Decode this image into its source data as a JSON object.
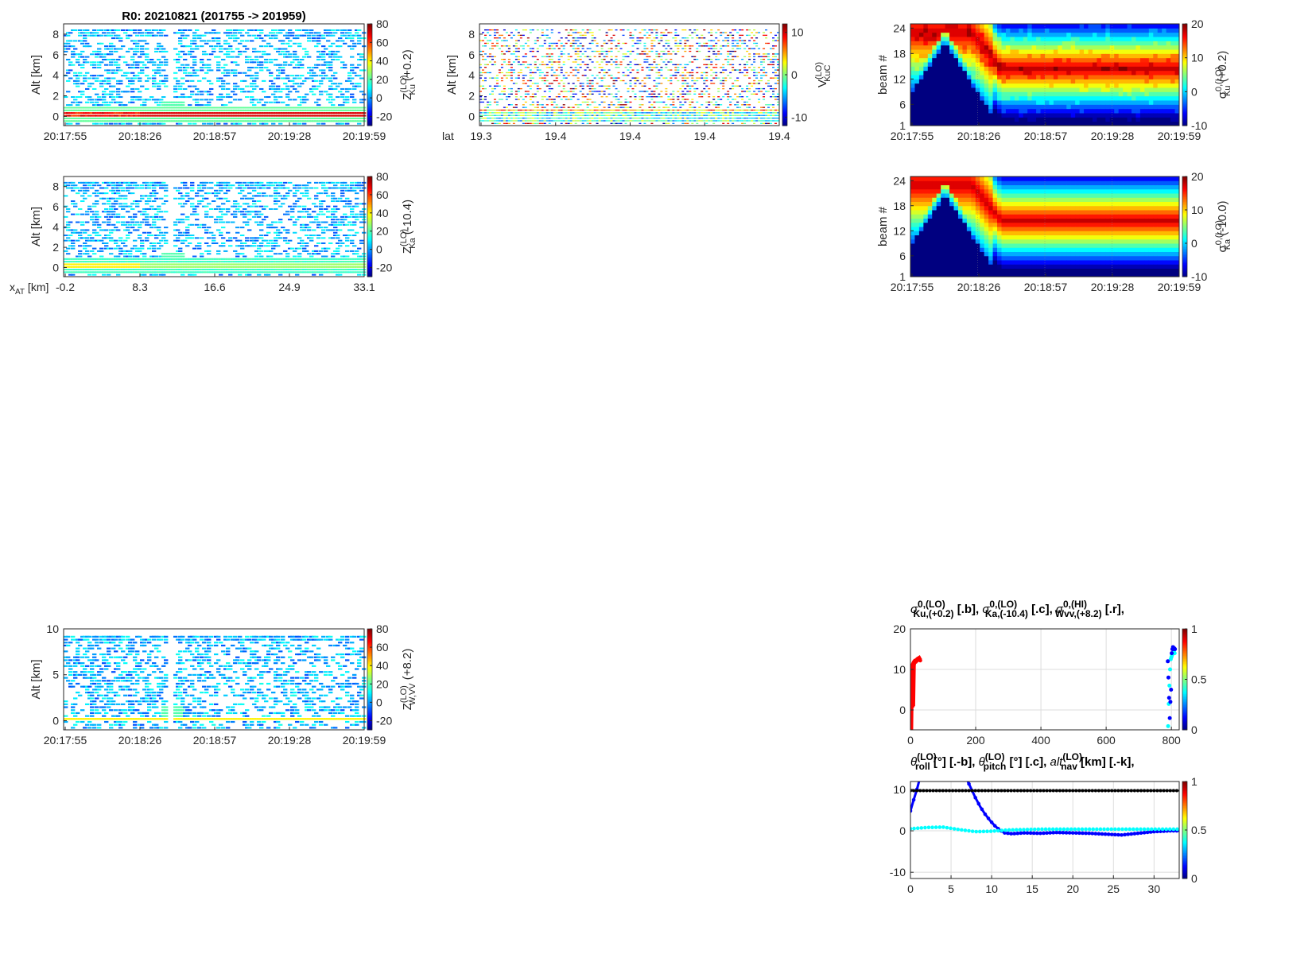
{
  "figure_title": "R0:  20210821 (201755 -> 201959)",
  "colors": {
    "ku": "#ff0000",
    "ka": "#00ffff",
    "w": "#0000ff",
    "alt": "#000000"
  },
  "chart_data": [
    {
      "id": "p1",
      "type": "heatmap",
      "ylabel": "Alt [km]",
      "ylim": [
        -0.9,
        9
      ],
      "yticks": [
        "0",
        "2",
        "4",
        "6",
        "8"
      ],
      "ytick_values": [
        0,
        2,
        4,
        6,
        8
      ],
      "xticks": [
        "20:17:55",
        "20:18:26",
        "20:18:57",
        "20:19:28",
        "20:19:59"
      ],
      "clim": [
        -30,
        80
      ],
      "cticks": [
        "-20",
        "0",
        "20",
        "40",
        "60",
        "80"
      ],
      "ctick_values": [
        -20,
        0,
        20,
        40,
        60,
        80
      ],
      "clabel": {
        "main": "Z",
        "sup": "(LO)",
        "sub": "Ku",
        "suffix": " (+0.2)"
      },
      "surface_alt_km": 0,
      "surface_value": 70
    },
    {
      "id": "p2",
      "type": "heatmap",
      "ylabel": "Alt [km]",
      "ylim": [
        -0.9,
        9
      ],
      "yticks": [
        "0",
        "2",
        "4",
        "6",
        "8"
      ],
      "ytick_values": [
        0,
        2,
        4,
        6,
        8
      ],
      "xlabel": "lat",
      "xticks": [
        "19.3",
        "19.4",
        "19.4",
        "19.4",
        "19.4"
      ],
      "clim": [
        -12,
        12
      ],
      "cticks": [
        "-10",
        "0",
        "10"
      ],
      "ctick_values": [
        -10,
        0,
        10
      ],
      "clabel": {
        "main": "V",
        "sup": "(LO)",
        "sub": "KuC",
        "suffix": ""
      }
    },
    {
      "id": "p3",
      "type": "heatmap",
      "ylabel": "beam #",
      "ylim": [
        1,
        25
      ],
      "yticks": [
        "1",
        "6",
        "12",
        "18",
        "24"
      ],
      "ytick_values": [
        1,
        6,
        12,
        18,
        24
      ],
      "xticks": [
        "20:17:55",
        "20:18:26",
        "20:18:57",
        "20:19:28",
        "20:19:59"
      ],
      "clim": [
        -10,
        20
      ],
      "cticks": [
        "-10",
        "0",
        "10",
        "20"
      ],
      "ctick_values": [
        -10,
        0,
        10,
        20
      ],
      "clabel": {
        "main": "σ",
        "sup": "0,(LO)",
        "sub": "Ku",
        "suffix": " (+0.2)"
      }
    },
    {
      "id": "p4",
      "type": "heatmap",
      "ylabel": "Alt [km]",
      "ylim": [
        -0.9,
        9
      ],
      "yticks": [
        "0",
        "2",
        "4",
        "6",
        "8"
      ],
      "ytick_values": [
        0,
        2,
        4,
        6,
        8
      ],
      "xlabel": "x",
      "xlabel_sub": "AT",
      "xlabel_suffix": " [km]",
      "xticks": [
        "-0.2",
        "8.3",
        "16.6",
        "24.9",
        "33.1"
      ],
      "clim": [
        -30,
        80
      ],
      "cticks": [
        "-20",
        "0",
        "20",
        "40",
        "60",
        "80"
      ],
      "ctick_values": [
        -20,
        0,
        20,
        40,
        60,
        80
      ],
      "clabel": {
        "main": "Z",
        "sup": "(LO)",
        "sub": "Ka",
        "suffix": " (-10.4)"
      }
    },
    {
      "id": "p5",
      "type": "heatmap",
      "ylabel": "beam #",
      "ylim": [
        1,
        25
      ],
      "yticks": [
        "1",
        "6",
        "12",
        "18",
        "24"
      ],
      "ytick_values": [
        1,
        6,
        12,
        18,
        24
      ],
      "xticks": [
        "20:17:55",
        "20:18:26",
        "20:18:57",
        "20:19:28",
        "20:19:59"
      ],
      "clim": [
        -10,
        20
      ],
      "cticks": [
        "-10",
        "0",
        "10",
        "20"
      ],
      "ctick_values": [
        -10,
        0,
        10,
        20
      ],
      "clabel": {
        "main": "σ",
        "sup": "0,(LO)",
        "sub": "Ka",
        "suffix": " (-10.0)"
      }
    },
    {
      "id": "p6",
      "type": "heatmap",
      "ylabel": "Alt [km]",
      "ylim": [
        -1,
        10
      ],
      "yticks": [
        "0",
        "5",
        "10"
      ],
      "ytick_values": [
        0,
        5,
        10
      ],
      "xticks": [
        "20:17:55",
        "20:18:26",
        "20:18:57",
        "20:19:28",
        "20:19:59"
      ],
      "clim": [
        -30,
        80
      ],
      "cticks": [
        "-20",
        "0",
        "20",
        "40",
        "60",
        "80"
      ],
      "ctick_values": [
        -20,
        0,
        20,
        40,
        60,
        80
      ],
      "clabel": {
        "main": "Z",
        "sup": "(LO)",
        "sub": "W,VV",
        "suffix": " (+8.2)"
      }
    },
    {
      "id": "p7",
      "type": "scatter",
      "title": [
        {
          "main": "σ",
          "sup": "0,(LO)",
          "sub": "Ku,(+0.2)",
          "suffix": " [.b],  "
        },
        {
          "main": "σ",
          "sup": "0,(LO)",
          "sub": "Ka,(-10.4)",
          "suffix": " [.c],  "
        },
        {
          "main": "σ",
          "sup": "0,(HI)",
          "sub": "Wvv,(+8.2)",
          "suffix": " [.r],"
        }
      ],
      "xlim": [
        0,
        824
      ],
      "ylim": [
        -4.9,
        20
      ],
      "xticks": [
        "0",
        "200",
        "400",
        "600",
        "800"
      ],
      "xtick_values": [
        0,
        200,
        400,
        600,
        800
      ],
      "yticks": [
        "0",
        "10",
        "20"
      ],
      "ytick_values": [
        0,
        10,
        20
      ],
      "cticks": [
        "0",
        "0.5",
        "1"
      ],
      "ctick_values": [
        0,
        0.5,
        1
      ],
      "grid": true,
      "series": [
        {
          "name": "W vv (red)",
          "color": "#ff0000",
          "x": [
            1,
            2,
            3,
            4,
            5,
            6,
            7,
            8,
            9,
            10,
            12,
            14,
            16,
            18,
            20,
            22,
            24,
            26,
            28,
            30
          ],
          "y": [
            -5,
            2,
            8,
            11,
            10,
            3,
            1,
            6,
            11,
            11.5,
            11.8,
            12,
            12,
            12.2,
            12.3,
            12.5,
            12.6,
            12.7,
            12.4,
            12.2
          ]
        },
        {
          "name": "Ka (cyan)",
          "color": "#00ffff",
          "x": [
            790,
            792,
            794,
            796,
            798,
            800,
            802,
            804,
            806,
            808,
            810
          ],
          "y": [
            -4,
            1.5,
            6,
            10,
            12.5,
            13,
            13.5,
            14,
            14,
            14.5,
            14
          ]
        },
        {
          "name": "Ku (blue)",
          "color": "#0000ff",
          "x": [
            789,
            791,
            793,
            795,
            797,
            799,
            801,
            803,
            805,
            807,
            809,
            811
          ],
          "y": [
            12,
            8,
            3,
            -2,
            2,
            5,
            14,
            15,
            15.5,
            15,
            15.2,
            15
          ]
        }
      ]
    },
    {
      "id": "p8",
      "type": "line",
      "title": [
        {
          "main": "θ",
          "sup": "(LO)",
          "sub": "roll",
          "suffix": " [°] [.-b],  "
        },
        {
          "main": "θ",
          "sup": "(LO)",
          "sub": "pitch",
          "suffix": " [°] [.c],  "
        },
        {
          "main": "alt",
          "sup": "(LO)",
          "sub": "nav",
          "suffix": " [km] [.-k],"
        }
      ],
      "xlim": [
        0,
        33.1
      ],
      "ylim": [
        -11.5,
        11.9
      ],
      "xticks": [
        "0",
        "5",
        "10",
        "15",
        "20",
        "25",
        "30"
      ],
      "xtick_values": [
        0,
        5,
        10,
        15,
        20,
        25,
        30
      ],
      "yticks": [
        "-10",
        "0",
        "10"
      ],
      "ytick_values": [
        -10,
        0,
        10
      ],
      "cticks": [
        "0",
        "0.5",
        "1"
      ],
      "ctick_values": [
        0,
        0.5,
        1
      ],
      "grid": true,
      "series": [
        {
          "name": "roll",
          "color": "#0000ff",
          "x": [
            0,
            0.4,
            0.8,
            1.2,
            6.8,
            7.4,
            8,
            8.6,
            9.2,
            9.8,
            10.4,
            11,
            11.6,
            12.5,
            14,
            16,
            18,
            20,
            22,
            24,
            26,
            28,
            30,
            32,
            33.1
          ],
          "y": [
            4.8,
            7.5,
            10,
            13,
            13,
            10.5,
            8,
            5.8,
            4,
            2.5,
            1.2,
            0.2,
            -0.5,
            -0.7,
            -0.5,
            -0.6,
            -0.4,
            -0.5,
            -0.6,
            -0.8,
            -1,
            -0.6,
            -0.2,
            0,
            0
          ]
        },
        {
          "name": "pitch",
          "color": "#00ffff",
          "x": [
            0,
            2,
            4,
            6,
            8,
            10,
            12,
            14,
            16,
            18,
            20,
            22,
            24,
            26,
            28,
            30,
            33.1
          ],
          "y": [
            0.5,
            0.8,
            0.9,
            0.3,
            -0.2,
            -0.1,
            0.2,
            0.3,
            0.4,
            0.4,
            0.4,
            0.4,
            0.4,
            0.4,
            0.4,
            0.4,
            0.4
          ]
        },
        {
          "name": "alt nav",
          "color": "#000000",
          "x": [
            0,
            33.1
          ],
          "y": [
            9.7,
            9.7
          ]
        }
      ]
    }
  ]
}
